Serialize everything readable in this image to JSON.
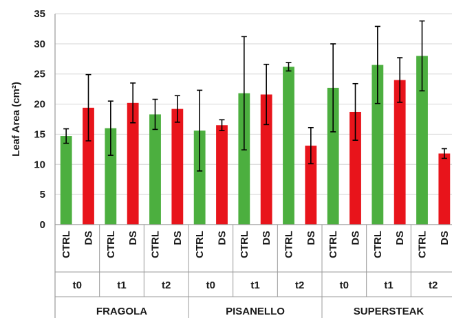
{
  "chart_data": {
    "type": "bar",
    "ylabel": "Leaf Area (cm²)",
    "ylim": [
      0,
      35
    ],
    "yticks": [
      0,
      5,
      10,
      15,
      20,
      25,
      30,
      35
    ],
    "grid": true,
    "colors": {
      "CTRL": "#4caf3f",
      "DS": "#e8141b"
    },
    "groups": [
      {
        "variety": "FRAGOLA",
        "times": [
          {
            "time": "t0",
            "bars": [
              {
                "treatment": "CTRL",
                "value": 14.7,
                "error": 1.2
              },
              {
                "treatment": "DS",
                "value": 19.4,
                "error": 5.5
              }
            ]
          },
          {
            "time": "t1",
            "bars": [
              {
                "treatment": "CTRL",
                "value": 16.0,
                "error": 4.5
              },
              {
                "treatment": "DS",
                "value": 20.2,
                "error": 3.3
              }
            ]
          },
          {
            "time": "t2",
            "bars": [
              {
                "treatment": "CTRL",
                "value": 18.3,
                "error": 2.5
              },
              {
                "treatment": "DS",
                "value": 19.2,
                "error": 2.2
              }
            ]
          }
        ]
      },
      {
        "variety": "PISANELLO",
        "times": [
          {
            "time": "t0",
            "bars": [
              {
                "treatment": "CTRL",
                "value": 15.6,
                "error": 6.7
              },
              {
                "treatment": "DS",
                "value": 16.5,
                "error": 0.9
              }
            ]
          },
          {
            "time": "t1",
            "bars": [
              {
                "treatment": "CTRL",
                "value": 21.8,
                "error": 9.4
              },
              {
                "treatment": "DS",
                "value": 21.6,
                "error": 5.0
              }
            ]
          },
          {
            "time": "t2",
            "bars": [
              {
                "treatment": "CTRL",
                "value": 26.2,
                "error": 0.7
              },
              {
                "treatment": "DS",
                "value": 13.1,
                "error": 3.0
              }
            ]
          }
        ]
      },
      {
        "variety": "SUPERSTEAK",
        "times": [
          {
            "time": "t0",
            "bars": [
              {
                "treatment": "CTRL",
                "value": 22.7,
                "error": 7.3
              },
              {
                "treatment": "DS",
                "value": 18.7,
                "error": 4.7
              }
            ]
          },
          {
            "time": "t1",
            "bars": [
              {
                "treatment": "CTRL",
                "value": 26.5,
                "error": 6.4
              },
              {
                "treatment": "DS",
                "value": 24.0,
                "error": 3.7
              }
            ]
          },
          {
            "time": "t2",
            "bars": [
              {
                "treatment": "CTRL",
                "value": 28.0,
                "error": 5.8
              },
              {
                "treatment": "DS",
                "value": 11.8,
                "error": 0.8
              }
            ]
          }
        ]
      }
    ]
  }
}
